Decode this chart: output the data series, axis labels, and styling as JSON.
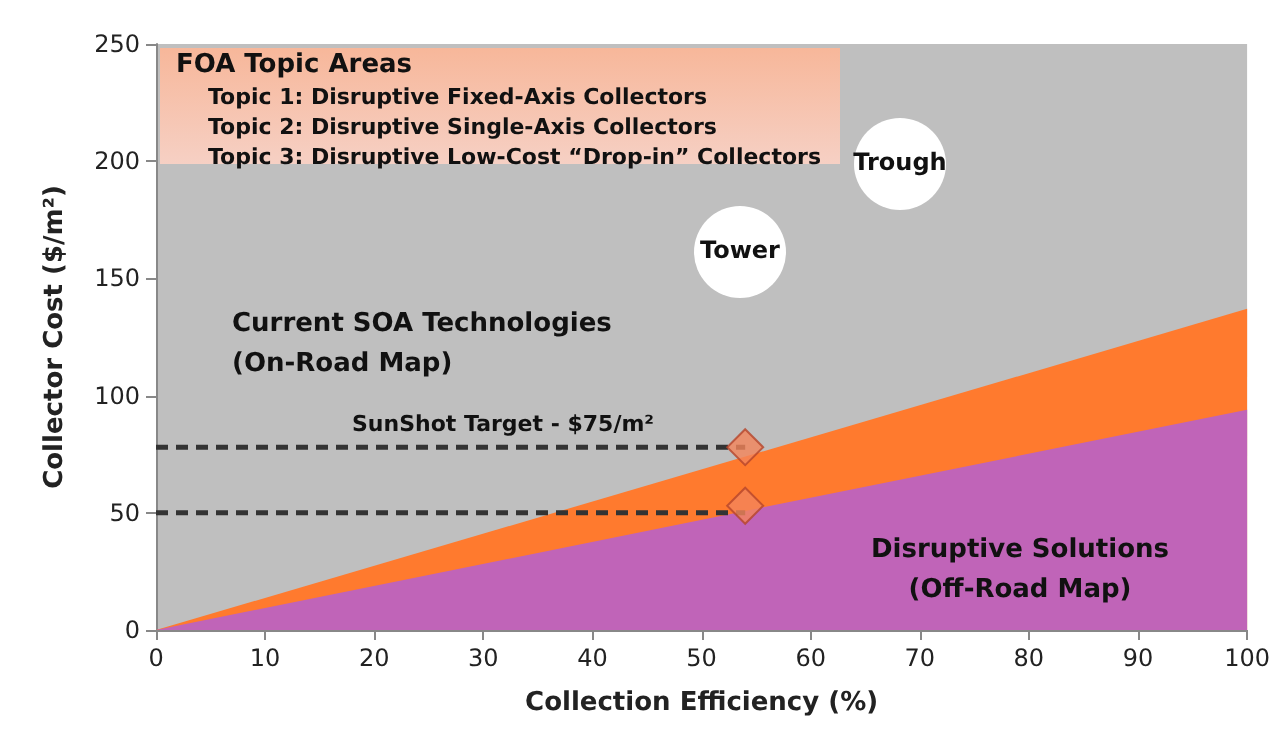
{
  "chart_data": {
    "type": "area",
    "xlabel": "Collection Efficiency (%)",
    "ylabel": "Collector Cost ($/m²)",
    "xlim": [
      0,
      100
    ],
    "xticks": [
      0,
      10,
      20,
      30,
      40,
      50,
      60,
      70,
      80,
      90,
      100
    ],
    "ylim": [
      0,
      250
    ],
    "yticks": [
      0,
      50,
      100,
      150,
      200,
      250
    ],
    "grid": false,
    "series": [
      {
        "color": "#ff7a2e",
        "x": [
          0,
          100
        ],
        "values": [
          0,
          137
        ]
      },
      {
        "color": "#c064b8",
        "x": [
          0,
          100
        ],
        "values": [
          0,
          94
        ]
      },
      {
        "type": "line",
        "color": "#333333",
        "line_style": "dashed",
        "marker": "none",
        "x": [
          0,
          54
        ],
        "values": [
          78,
          78
        ]
      },
      {
        "type": "line",
        "color": "#333333",
        "line_style": "dashed",
        "marker": "none",
        "x": [
          0,
          54
        ],
        "values": [
          50,
          50
        ]
      },
      {
        "type": "scatter",
        "color": "#f4845a",
        "marker": "diamond",
        "x": [
          54,
          54
        ],
        "values": [
          78,
          53
        ]
      }
    ],
    "annotations": [
      "FOA Topic Areas",
      "Topic 1: Disruptive Fixed-Axis Collectors",
      "Topic 2: Disruptive Single-Axis Collectors",
      "Topic 3: Disruptive Low-Cost “Drop-in” Collectors",
      "Current SOA Technologies\n(On-Road Map)",
      "SunShot Target - $75/m²",
      "Disruptive Solutions\n(Off-Road Map)",
      "Tower",
      "Trough"
    ]
  }
}
